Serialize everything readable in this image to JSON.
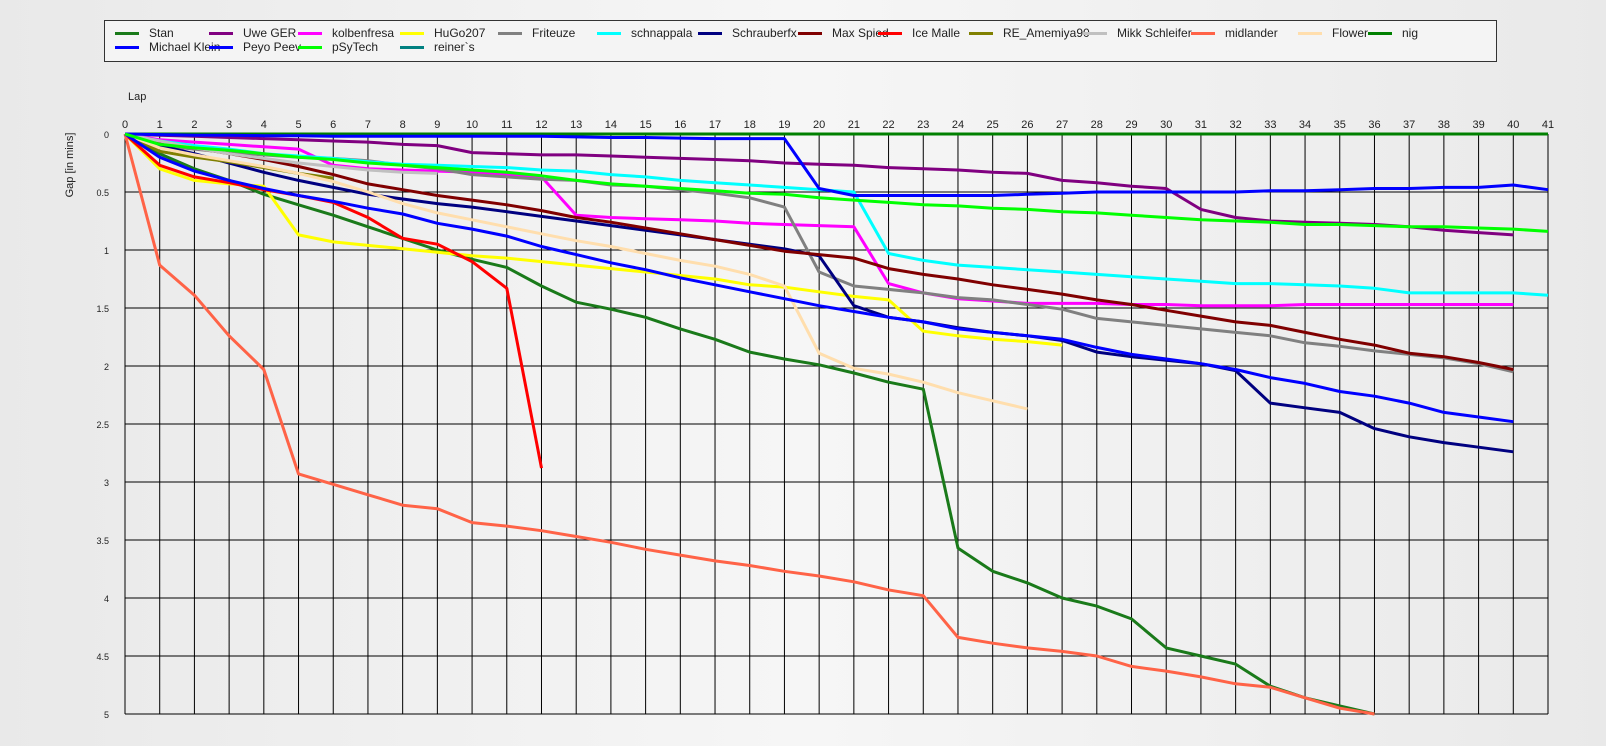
{
  "chart_data": {
    "type": "line",
    "xlabel": "Lap",
    "ylabel": "Gap [in mins]",
    "xlim": [
      0,
      41
    ],
    "ylim": [
      0,
      5
    ],
    "y_reversed": true,
    "x_ticks": [
      0,
      1,
      2,
      3,
      4,
      5,
      6,
      7,
      8,
      9,
      10,
      11,
      12,
      13,
      14,
      15,
      16,
      17,
      18,
      19,
      20,
      21,
      22,
      23,
      24,
      25,
      26,
      27,
      28,
      29,
      30,
      31,
      32,
      33,
      34,
      35,
      36,
      37,
      38,
      39,
      40,
      41
    ],
    "y_ticks": [
      0,
      0.5,
      1,
      1.5,
      2,
      2.5,
      3,
      3.5,
      4,
      4.5,
      5
    ],
    "grid": true,
    "legend_position": "top",
    "series": [
      {
        "name": "Stan",
        "color": "#1a7a1a",
        "values": [
          0,
          0.17,
          0.3,
          0.4,
          0.52,
          0.61,
          0.7,
          0.8,
          0.9,
          1.0,
          1.08,
          1.15,
          1.31,
          1.45,
          1.51,
          1.58,
          1.68,
          1.77,
          1.88,
          1.94,
          1.99,
          2.06,
          2.14,
          2.2,
          3.57,
          3.77,
          3.87,
          4.0,
          4.07,
          4.18,
          4.43,
          4.5,
          4.57,
          4.76,
          4.86,
          4.93,
          5.0
        ]
      },
      {
        "name": "Uwe GER",
        "color": "#800080",
        "values": [
          0,
          0.01,
          0.02,
          0.03,
          0.04,
          0.05,
          0.06,
          0.07,
          0.09,
          0.1,
          0.16,
          0.17,
          0.18,
          0.18,
          0.19,
          0.2,
          0.21,
          0.22,
          0.23,
          0.25,
          0.26,
          0.27,
          0.29,
          0.3,
          0.31,
          0.33,
          0.34,
          0.4,
          0.42,
          0.45,
          0.47,
          0.65,
          0.72,
          0.75,
          0.76,
          0.77,
          0.78,
          0.8,
          0.83,
          0.85,
          0.87
        ]
      },
      {
        "name": "kolbenfresa",
        "color": "#ff00ff",
        "values": [
          0,
          0.05,
          0.07,
          0.09,
          0.11,
          0.13,
          0.27,
          0.3,
          0.31,
          0.32,
          0.33,
          0.35,
          0.37,
          0.7,
          0.72,
          0.73,
          0.74,
          0.75,
          0.77,
          0.78,
          0.79,
          0.8,
          1.29,
          1.37,
          1.42,
          1.44,
          1.46,
          1.46,
          1.46,
          1.47,
          1.47,
          1.48,
          1.48,
          1.48,
          1.47,
          1.47,
          1.47,
          1.47,
          1.47,
          1.47,
          1.47
        ]
      },
      {
        "name": "HuGo207",
        "color": "#ffff00",
        "values": [
          0,
          0.3,
          0.4,
          0.43,
          0.45,
          0.87,
          0.93,
          0.96,
          0.99,
          1.02,
          1.05,
          1.07,
          1.1,
          1.13,
          1.16,
          1.19,
          1.22,
          1.25,
          1.3,
          1.32,
          1.36,
          1.4,
          1.43,
          1.7,
          1.74,
          1.77,
          1.79,
          1.82,
          null,
          null,
          null,
          null,
          null,
          null,
          null,
          null,
          null,
          null,
          null,
          null,
          null
        ]
      },
      {
        "name": "Friteuze",
        "color": "#808080",
        "values": [
          0,
          0.1,
          0.13,
          0.16,
          0.18,
          0.2,
          0.21,
          0.23,
          0.27,
          0.3,
          0.35,
          0.37,
          0.39,
          0.4,
          0.44,
          0.45,
          0.48,
          0.51,
          0.55,
          0.63,
          1.19,
          1.31,
          1.34,
          1.37,
          1.41,
          1.43,
          1.47,
          1.51,
          1.59,
          1.62,
          1.65,
          1.68,
          1.71,
          1.74,
          1.8,
          1.83,
          1.87,
          1.9,
          1.93,
          1.98,
          2.05
        ]
      },
      {
        "name": "schnappala",
        "color": "#00ffff",
        "values": [
          0,
          0.06,
          0.1,
          0.13,
          0.17,
          0.19,
          0.21,
          0.24,
          0.26,
          0.27,
          0.28,
          0.29,
          0.31,
          0.32,
          0.35,
          0.37,
          0.4,
          0.42,
          0.44,
          0.46,
          0.48,
          0.5,
          1.03,
          1.09,
          1.13,
          1.15,
          1.17,
          1.19,
          1.21,
          1.23,
          1.25,
          1.27,
          1.29,
          1.29,
          1.3,
          1.31,
          1.33,
          1.37,
          1.37,
          1.37,
          1.37,
          1.39
        ]
      },
      {
        "name": "Schrauberfx",
        "color": "#000080",
        "values": [
          0,
          0.1,
          0.17,
          0.25,
          0.33,
          0.4,
          0.46,
          0.52,
          0.56,
          0.6,
          0.63,
          0.67,
          0.71,
          0.75,
          0.79,
          0.83,
          0.87,
          0.91,
          0.95,
          0.99,
          1.05,
          1.48,
          1.58,
          1.62,
          1.67,
          1.71,
          1.74,
          1.78,
          1.88,
          1.92,
          1.95,
          1.98,
          2.04,
          2.32,
          2.36,
          2.4,
          2.54,
          2.61,
          2.66,
          2.7,
          2.74
        ]
      },
      {
        "name": "Max Spied",
        "color": "#800000",
        "values": [
          0,
          0.07,
          0.12,
          0.17,
          0.22,
          0.28,
          0.35,
          0.43,
          0.48,
          0.53,
          0.57,
          0.61,
          0.66,
          0.72,
          0.76,
          0.81,
          0.86,
          0.91,
          0.96,
          1.01,
          1.04,
          1.07,
          1.16,
          1.21,
          1.25,
          1.3,
          1.34,
          1.38,
          1.43,
          1.47,
          1.52,
          1.57,
          1.62,
          1.65,
          1.71,
          1.77,
          1.82,
          1.89,
          1.92,
          1.97,
          2.03
        ]
      },
      {
        "name": "Ice Malle",
        "color": "#ff0000",
        "values": [
          0,
          0.27,
          0.37,
          0.42,
          0.48,
          0.53,
          0.59,
          0.72,
          0.9,
          0.95,
          1.1,
          1.33,
          2.88,
          null,
          null,
          null,
          null,
          null,
          null,
          null,
          null,
          null,
          null,
          null,
          null,
          null,
          null,
          null,
          null,
          null,
          null,
          null,
          null,
          null,
          null,
          null,
          null,
          null,
          null,
          null,
          null
        ]
      },
      {
        "name": "RE_Amemiya90",
        "color": "#808000",
        "values": [
          0,
          0.15,
          0.2,
          0.24,
          0.29,
          0.34,
          0.38,
          null,
          null,
          null,
          null,
          null,
          null,
          null,
          null,
          null,
          null,
          null,
          null,
          null,
          null,
          null,
          null,
          null,
          null,
          null,
          null,
          null,
          null,
          null,
          null,
          null,
          null,
          null,
          null,
          null,
          null,
          null,
          null,
          null,
          null
        ]
      },
      {
        "name": "Mikk Schleifer",
        "color": "#c0c0c0",
        "values": [
          0,
          0.06,
          0.12,
          0.17,
          0.21,
          0.25,
          0.28,
          0.31,
          0.33,
          0.34,
          null,
          null,
          null,
          null,
          null,
          null,
          null,
          null,
          null,
          null,
          null,
          null,
          null,
          null,
          null,
          null,
          null,
          null,
          null,
          null,
          null,
          null,
          null,
          null,
          null,
          null,
          null,
          null,
          null,
          null,
          null
        ]
      },
      {
        "name": "midlander",
        "color": "#ff6347",
        "values": [
          0,
          1.13,
          1.39,
          1.74,
          2.03,
          2.93,
          3.02,
          3.11,
          3.2,
          3.23,
          3.35,
          3.38,
          3.42,
          3.47,
          3.52,
          3.58,
          3.63,
          3.68,
          3.72,
          3.77,
          3.81,
          3.86,
          3.93,
          3.98,
          4.34,
          4.39,
          4.43,
          4.46,
          4.5,
          4.59,
          4.63,
          4.68,
          4.74,
          4.77,
          4.86,
          4.95,
          5.0
        ]
      },
      {
        "name": "Flower",
        "color": "#ffdead",
        "values": [
          0,
          0.12,
          0.18,
          0.23,
          0.28,
          0.34,
          0.41,
          0.5,
          0.6,
          0.68,
          0.74,
          0.8,
          0.86,
          0.92,
          0.97,
          1.03,
          1.09,
          1.14,
          1.21,
          1.31,
          1.89,
          2.02,
          2.07,
          2.14,
          2.23,
          2.3,
          2.37,
          null,
          null,
          null,
          null,
          null,
          null,
          null,
          null,
          null,
          null,
          null,
          null,
          null,
          null
        ]
      },
      {
        "name": "nig",
        "color": "#008000",
        "values": [
          0,
          0,
          0,
          0,
          0,
          0,
          0,
          0,
          0,
          0,
          0,
          0,
          0,
          0,
          0,
          0,
          0,
          0,
          0,
          0,
          0,
          0,
          0,
          0,
          0,
          0,
          0,
          0,
          0,
          0,
          0,
          0,
          0,
          0,
          0,
          0,
          0,
          0,
          0,
          0,
          0,
          0
        ]
      },
      {
        "name": "Michael Klein",
        "color": "#0000ff",
        "values": [
          0,
          0.005,
          0.01,
          0.01,
          0.015,
          0.015,
          0.02,
          0.02,
          0.02,
          0.02,
          0.02,
          0.02,
          0.02,
          0.025,
          0.03,
          0.03,
          0.035,
          0.04,
          0.04,
          0.04,
          0.47,
          0.53,
          0.53,
          0.53,
          0.53,
          0.53,
          0.52,
          0.51,
          0.5,
          0.5,
          0.5,
          0.5,
          0.5,
          0.49,
          0.49,
          0.48,
          0.47,
          0.47,
          0.46,
          0.46,
          0.44,
          0.48
        ]
      },
      {
        "name": "Peyo Peev",
        "color": "#0000ff",
        "values": [
          0,
          0.2,
          0.32,
          0.4,
          0.47,
          0.53,
          0.58,
          0.64,
          0.69,
          0.77,
          0.82,
          0.88,
          0.97,
          1.04,
          1.11,
          1.17,
          1.24,
          1.3,
          1.36,
          1.42,
          1.48,
          1.53,
          1.58,
          1.62,
          1.68,
          1.71,
          1.74,
          1.77,
          1.84,
          1.9,
          1.94,
          1.98,
          2.03,
          2.1,
          2.15,
          2.22,
          2.26,
          2.32,
          2.4,
          2.44,
          2.48
        ]
      },
      {
        "name": "pSyTech",
        "color": "#00ff00",
        "values": [
          0,
          0.09,
          0.12,
          0.14,
          0.17,
          0.2,
          0.22,
          0.25,
          0.27,
          0.29,
          0.31,
          0.33,
          0.36,
          0.4,
          0.43,
          0.45,
          0.47,
          0.49,
          0.51,
          0.52,
          0.55,
          0.57,
          0.59,
          0.61,
          0.62,
          0.64,
          0.65,
          0.67,
          0.68,
          0.7,
          0.72,
          0.74,
          0.75,
          0.76,
          0.78,
          0.78,
          0.79,
          0.8,
          0.8,
          0.81,
          0.82,
          0.84
        ]
      },
      {
        "name": "reiner`s",
        "color": "#008080",
        "values": []
      }
    ]
  }
}
